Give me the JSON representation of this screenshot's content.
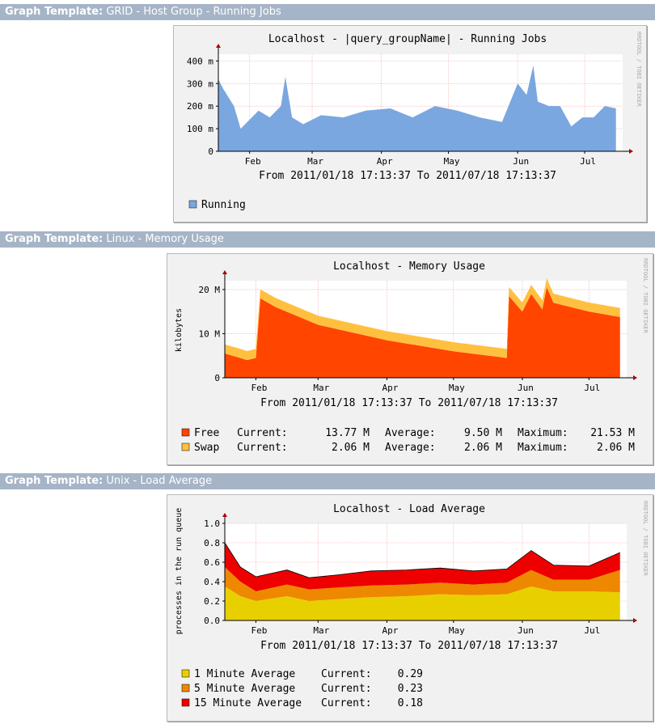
{
  "graph_label": "Graph Template:",
  "sections": [
    {
      "name": "GRID - Host Group - Running Jobs"
    },
    {
      "name": "Linux - Memory Usage"
    },
    {
      "name": "Unix - Load Average"
    }
  ],
  "watermark": "RRDTOOL / TOBI OETIKER",
  "chart_data": [
    {
      "type": "area",
      "title": "Localhost - |query_groupName| - Running Jobs",
      "subtitle": "From 2011/01/18 17:13:37 To 2011/07/18 17:13:37",
      "ylabel": "",
      "x_ticks": [
        "Feb",
        "Mar",
        "Apr",
        "May",
        "Jun",
        "Jul"
      ],
      "y_ticks": [
        "0",
        "100 m",
        "200 m",
        "300 m",
        "400 m"
      ],
      "ylim": [
        0,
        0.43
      ],
      "grid": true,
      "legend_position": "bottom-left",
      "colors": {
        "Running": "#7aa7e0"
      },
      "series": [
        {
          "name": "Running",
          "x": [
            "2011-01-18",
            "2011-01-20",
            "2011-01-25",
            "2011-01-28",
            "2011-02-05",
            "2011-02-10",
            "2011-02-15",
            "2011-02-17",
            "2011-02-20",
            "2011-02-25",
            "2011-03-05",
            "2011-03-15",
            "2011-03-25",
            "2011-04-05",
            "2011-04-15",
            "2011-04-25",
            "2011-05-05",
            "2011-05-15",
            "2011-05-25",
            "2011-06-01",
            "2011-06-05",
            "2011-06-08",
            "2011-06-10",
            "2011-06-15",
            "2011-06-20",
            "2011-06-25",
            "2011-06-30",
            "2011-07-05",
            "2011-07-10",
            "2011-07-15"
          ],
          "values": [
            0.32,
            0.28,
            0.2,
            0.1,
            0.18,
            0.15,
            0.2,
            0.33,
            0.15,
            0.12,
            0.16,
            0.15,
            0.18,
            0.19,
            0.15,
            0.2,
            0.18,
            0.15,
            0.13,
            0.3,
            0.25,
            0.38,
            0.22,
            0.2,
            0.2,
            0.11,
            0.15,
            0.15,
            0.2,
            0.19
          ]
        }
      ]
    },
    {
      "type": "area",
      "title": "Localhost - Memory Usage",
      "subtitle": "From 2011/01/18 17:13:37 To 2011/07/18 17:13:37",
      "ylabel": "kilobytes",
      "x_ticks": [
        "Feb",
        "Mar",
        "Apr",
        "May",
        "Jun",
        "Jul"
      ],
      "y_ticks": [
        "0",
        "10 M",
        "20 M"
      ],
      "ylim": [
        0,
        22
      ],
      "grid": true,
      "legend_position": "bottom-left",
      "colors": {
        "Free": "#ff4500",
        "Swap": "#ffc040"
      },
      "series": [
        {
          "name": "Free",
          "current": "13.77 M",
          "average": "9.50 M",
          "maximum": "21.53 M",
          "x": [
            "2011-01-18",
            "2011-01-25",
            "2011-01-28",
            "2011-02-01",
            "2011-02-03",
            "2011-02-10",
            "2011-03-01",
            "2011-04-01",
            "2011-05-01",
            "2011-05-25",
            "2011-05-26",
            "2011-06-01",
            "2011-06-05",
            "2011-06-10",
            "2011-06-12",
            "2011-06-15",
            "2011-07-01",
            "2011-07-15"
          ],
          "values": [
            5.5,
            4.5,
            4.0,
            4.5,
            18.0,
            16.0,
            12.0,
            8.5,
            6.0,
            4.5,
            18.5,
            15.0,
            19.0,
            15.5,
            20.5,
            17.0,
            15.0,
            13.77
          ]
        },
        {
          "name": "Swap",
          "current": "2.06 M",
          "average": "2.06 M",
          "maximum": "2.06 M",
          "values": [
            2.06,
            2.06,
            2.06,
            2.06,
            2.06,
            2.06,
            2.06,
            2.06,
            2.06,
            2.06,
            2.06,
            2.06,
            2.06,
            2.06,
            2.06,
            2.06,
            2.06,
            2.06
          ]
        }
      ]
    },
    {
      "type": "area",
      "title": "Localhost - Load Average",
      "subtitle": "From 2011/01/18 17:13:37 To 2011/07/18 17:13:37",
      "ylabel": "processes in the run queue",
      "x_ticks": [
        "Feb",
        "Mar",
        "Apr",
        "May",
        "Jun",
        "Jul"
      ],
      "y_ticks": [
        "0.0",
        "0.2",
        "0.4",
        "0.6",
        "0.8",
        "1.0"
      ],
      "ylim": [
        0,
        1.0
      ],
      "grid": true,
      "legend_position": "bottom-left",
      "colors": {
        "1 Minute Average": "#e8d000",
        "5 Minute Average": "#ee8800",
        "15 Minute Average": "#ee0000"
      },
      "series": [
        {
          "name": "1 Minute Average",
          "current": "0.29",
          "x": [
            "2011-01-18",
            "2011-01-25",
            "2011-02-01",
            "2011-02-15",
            "2011-02-25",
            "2011-03-10",
            "2011-03-25",
            "2011-04-10",
            "2011-04-25",
            "2011-05-10",
            "2011-05-25",
            "2011-06-05",
            "2011-06-15",
            "2011-07-01",
            "2011-07-15"
          ],
          "values": [
            0.35,
            0.25,
            0.2,
            0.25,
            0.2,
            0.22,
            0.24,
            0.25,
            0.27,
            0.26,
            0.27,
            0.35,
            0.3,
            0.3,
            0.29
          ]
        },
        {
          "name": "5 Minute Average",
          "current": "0.23",
          "values": [
            0.2,
            0.15,
            0.1,
            0.12,
            0.12,
            0.12,
            0.12,
            0.12,
            0.12,
            0.11,
            0.12,
            0.17,
            0.12,
            0.12,
            0.23
          ]
        },
        {
          "name": "15 Minute Average",
          "current": "0.18",
          "values": [
            0.25,
            0.15,
            0.15,
            0.15,
            0.12,
            0.13,
            0.15,
            0.15,
            0.15,
            0.14,
            0.14,
            0.2,
            0.15,
            0.14,
            0.18
          ]
        }
      ]
    }
  ],
  "legend_labels": {
    "current": "Current:",
    "average": "Average:",
    "maximum": "Maximum:"
  }
}
